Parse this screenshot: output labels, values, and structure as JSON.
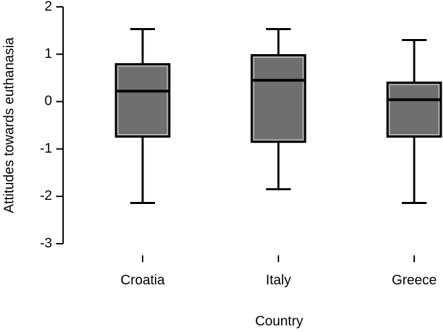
{
  "chart_data": {
    "type": "box",
    "x_label": "Country",
    "y_label": "Attitudes towards euthanasia",
    "categories": [
      "Croatia",
      "Italy",
      "Greece"
    ],
    "min": [
      -2.14,
      -1.85,
      -2.14
    ],
    "q1": [
      -0.74,
      -0.85,
      -0.74
    ],
    "median": [
      0.22,
      0.45,
      0.04
    ],
    "q3": [
      0.79,
      0.98,
      0.4
    ],
    "max": [
      1.53,
      1.53,
      1.3
    ],
    "color": "#6f6f6f",
    "ylim": [
      -3,
      2
    ],
    "yticks": [
      -3,
      -2,
      -1,
      0,
      1,
      2
    ]
  }
}
